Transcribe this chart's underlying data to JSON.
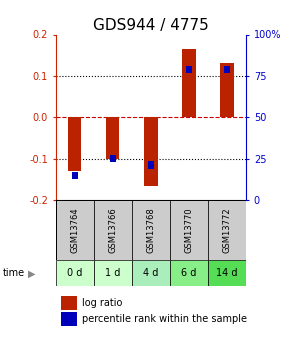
{
  "title": "GDS944 / 4775",
  "samples": [
    "GSM13764",
    "GSM13766",
    "GSM13768",
    "GSM13770",
    "GSM13772"
  ],
  "time_labels": [
    "0 d",
    "1 d",
    "4 d",
    "6 d",
    "14 d"
  ],
  "log_ratios": [
    -0.13,
    -0.1,
    -0.165,
    0.165,
    0.13
  ],
  "percentile_y": [
    -0.14,
    -0.1,
    -0.115,
    0.115,
    0.115
  ],
  "ylim": [
    -0.2,
    0.2
  ],
  "yticks_left": [
    -0.2,
    -0.1,
    0.0,
    0.1,
    0.2
  ],
  "yticks_right_labels": [
    "0",
    "25",
    "50",
    "75",
    "100%"
  ],
  "bar_width": 0.35,
  "bar_color": "#bb2200",
  "percentile_color": "#0000bb",
  "zero_line_color": "#cc0000",
  "bg_color": "#ffffff",
  "sample_bg": "#cccccc",
  "time_bg_colors": [
    "#ccffcc",
    "#ccffcc",
    "#aaeebb",
    "#88ee88",
    "#55dd55"
  ],
  "title_fontsize": 11,
  "tick_fontsize": 7,
  "legend_fontsize": 7
}
